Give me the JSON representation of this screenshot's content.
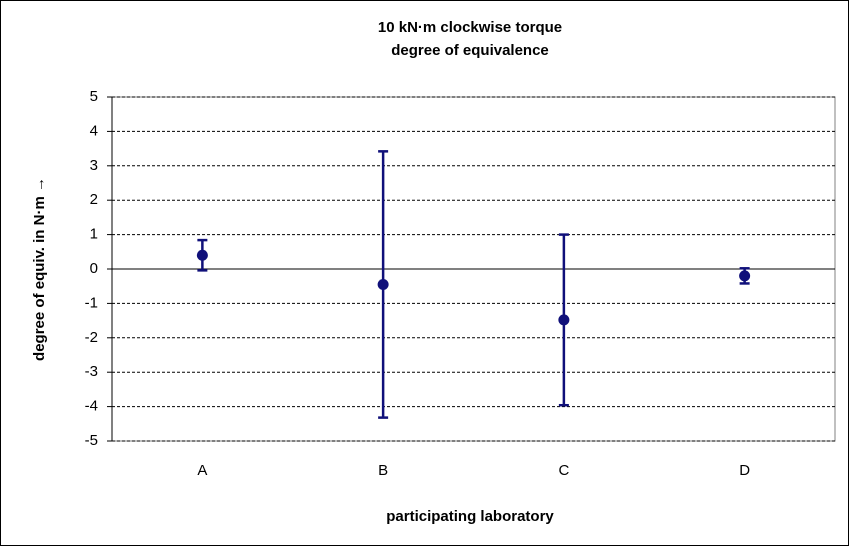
{
  "chart_data": {
    "type": "errorbar",
    "title": "10 kN·m clockwise torque",
    "subtitle": "degree of equivalence",
    "x_label": "participating laboratory",
    "y_label": "degree of equiv. in N·m  →",
    "categories": [
      "A",
      "B",
      "C",
      "D"
    ],
    "values": [
      0.4,
      -0.45,
      -1.48,
      -0.2
    ],
    "errors": [
      0.44,
      3.87,
      2.48,
      0.22
    ],
    "color": "#10107a",
    "ylim": [
      -5,
      5
    ],
    "yticks": [
      -5,
      -4,
      -3,
      -2,
      -1,
      0,
      1,
      2,
      3,
      4,
      5
    ],
    "grid": true
  }
}
